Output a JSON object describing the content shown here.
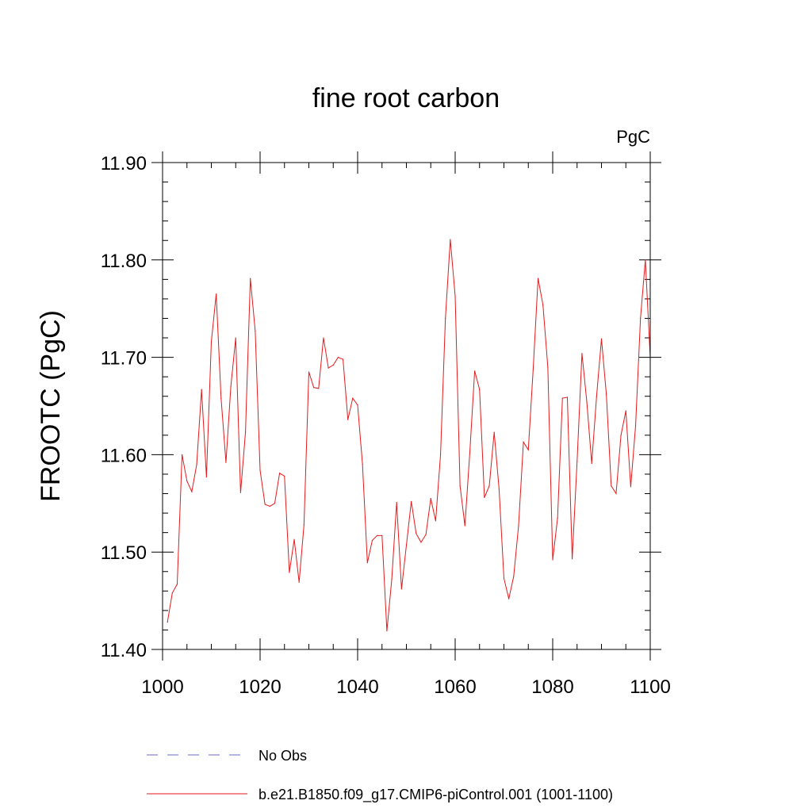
{
  "chart_data": {
    "type": "line",
    "title": "fine root carbon",
    "units": "PgC",
    "ylabel": "FROOTC  (PgC)",
    "xlabel": "",
    "xlim": [
      1000,
      1100
    ],
    "ylim": [
      11.4,
      11.9
    ],
    "x_ticks": [
      1000,
      1020,
      1040,
      1060,
      1080,
      1100
    ],
    "x_tick_labels": [
      "1000",
      "1020",
      "1040",
      "1060",
      "1080",
      "1100"
    ],
    "y_ticks": [
      11.4,
      11.5,
      11.6,
      11.7,
      11.8,
      11.9
    ],
    "y_tick_labels": [
      "11.40",
      "11.50",
      "11.60",
      "11.70",
      "11.80",
      "11.90"
    ],
    "grid": false,
    "legend_position": "bottom",
    "series": [
      {
        "name": "b.e21.B1850.f09_g17.CMIP6-piControl.001 (1001-1100)",
        "color": "#e41a1c",
        "style": "solid",
        "x": [
          1001,
          1002,
          1003,
          1004,
          1005,
          1006,
          1007,
          1008,
          1009,
          1010,
          1011,
          1012,
          1013,
          1014,
          1015,
          1016,
          1017,
          1018,
          1019,
          1020,
          1021,
          1022,
          1023,
          1024,
          1025,
          1026,
          1027,
          1028,
          1029,
          1030,
          1031,
          1032,
          1033,
          1034,
          1035,
          1036,
          1037,
          1038,
          1039,
          1040,
          1041,
          1042,
          1043,
          1044,
          1045,
          1046,
          1047,
          1048,
          1049,
          1050,
          1051,
          1052,
          1053,
          1054,
          1055,
          1056,
          1057,
          1058,
          1059,
          1060,
          1061,
          1062,
          1063,
          1064,
          1065,
          1066,
          1067,
          1068,
          1069,
          1070,
          1071,
          1072,
          1073,
          1074,
          1075,
          1076,
          1077,
          1078,
          1079,
          1080,
          1081,
          1082,
          1083,
          1084,
          1085,
          1086,
          1087,
          1088,
          1089,
          1090,
          1091,
          1092,
          1093,
          1094,
          1095,
          1096,
          1097,
          1098,
          1099,
          1100
        ],
        "values": [
          11.428,
          11.458,
          11.467,
          11.6,
          11.573,
          11.562,
          11.59,
          11.667,
          11.577,
          11.716,
          11.765,
          11.658,
          11.592,
          11.67,
          11.72,
          11.561,
          11.623,
          11.781,
          11.727,
          11.584,
          11.549,
          11.547,
          11.55,
          11.581,
          11.578,
          11.479,
          11.513,
          11.469,
          11.528,
          11.685,
          11.669,
          11.668,
          11.72,
          11.689,
          11.692,
          11.7,
          11.698,
          11.636,
          11.658,
          11.651,
          11.59,
          11.489,
          11.512,
          11.517,
          11.517,
          11.419,
          11.472,
          11.551,
          11.462,
          11.507,
          11.552,
          11.519,
          11.51,
          11.518,
          11.555,
          11.532,
          11.6,
          11.74,
          11.821,
          11.763,
          11.568,
          11.527,
          11.602,
          11.686,
          11.667,
          11.556,
          11.568,
          11.623,
          11.565,
          11.473,
          11.452,
          11.475,
          11.527,
          11.613,
          11.605,
          11.688,
          11.781,
          11.754,
          11.69,
          11.492,
          11.535,
          11.658,
          11.659,
          11.493,
          11.593,
          11.704,
          11.654,
          11.591,
          11.66,
          11.719,
          11.662,
          11.568,
          11.56,
          11.62,
          11.645,
          11.567,
          11.63,
          11.74,
          11.8,
          11.7
        ]
      }
    ],
    "legend": [
      {
        "label": "No Obs",
        "color": "#6a6aca",
        "style": "dashed"
      },
      {
        "label": "b.e21.B1850.f09_g17.CMIP6-piControl.001 (1001-1100)",
        "color": "#e41a1c",
        "style": "solid"
      }
    ]
  }
}
